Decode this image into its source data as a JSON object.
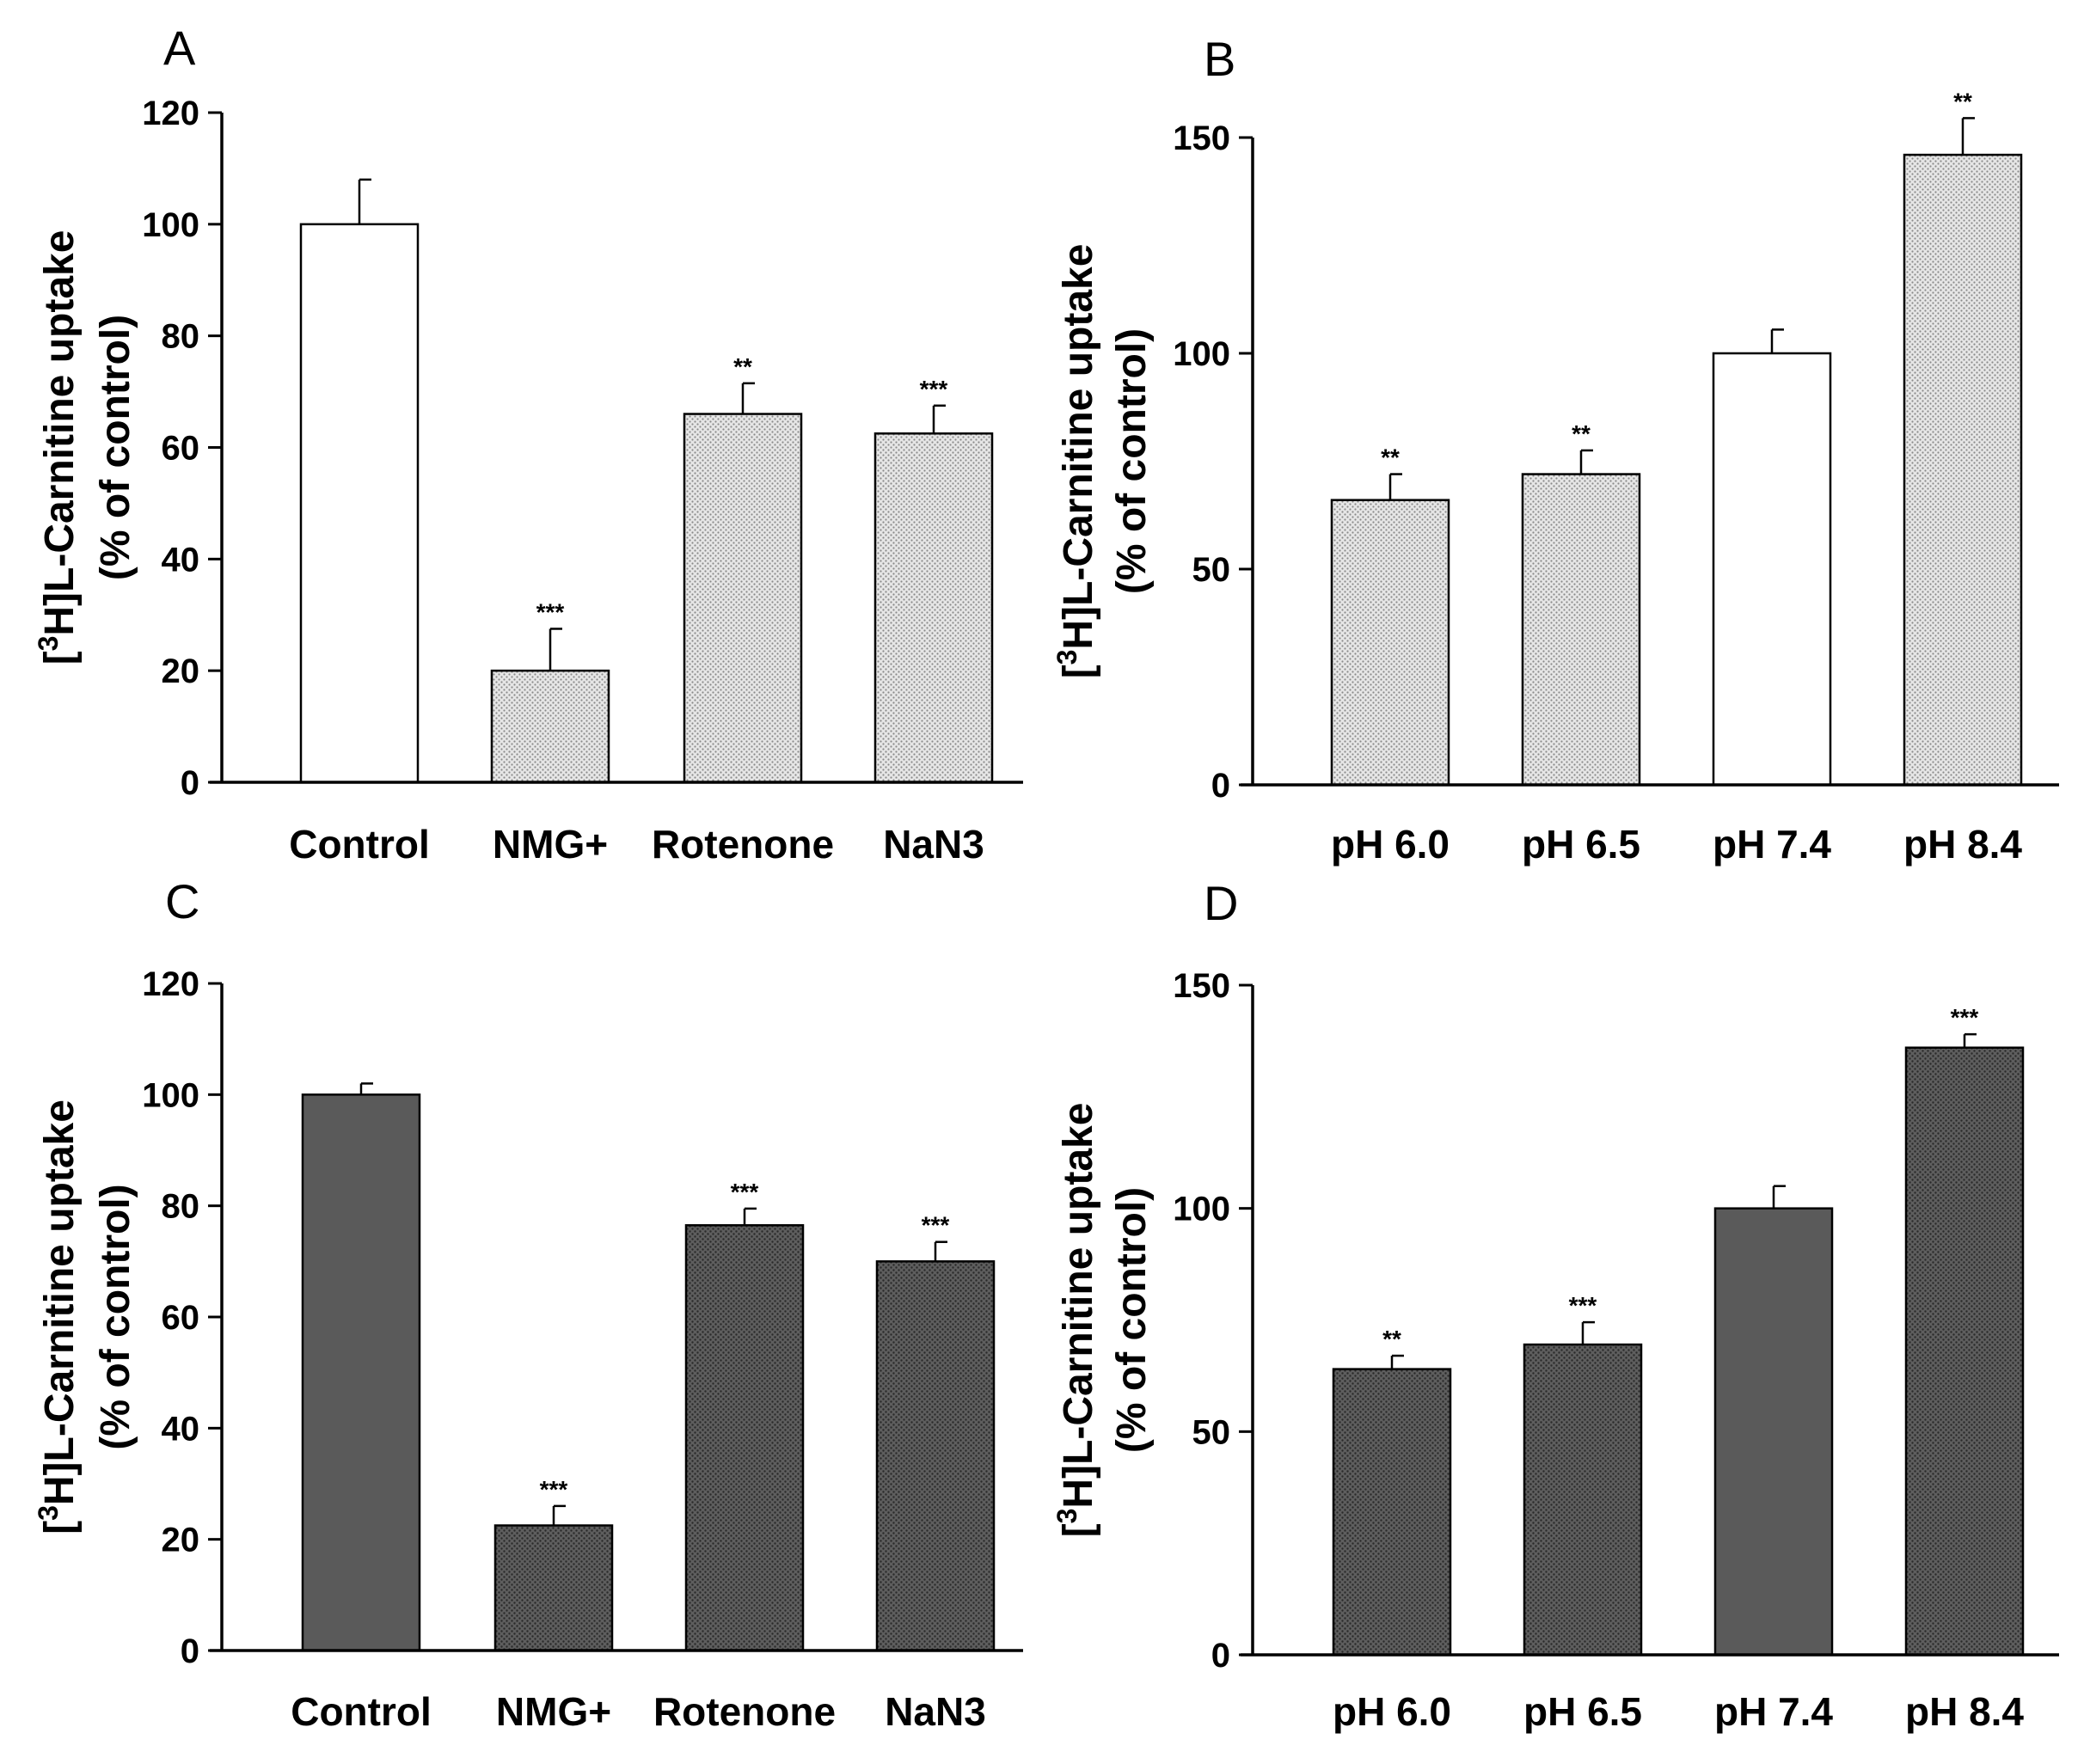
{
  "figure": {
    "panels": [
      "A",
      "B",
      "C",
      "D"
    ]
  },
  "chart_data": [
    {
      "panel": "A",
      "type": "bar",
      "categories": [
        "Control",
        "NMG+",
        "Rotenone",
        "NaN3"
      ],
      "values": [
        100,
        20,
        66,
        62.5
      ],
      "errors": [
        8,
        7.5,
        5.5,
        5
      ],
      "significance": [
        "",
        "***",
        "**",
        "***"
      ],
      "bar_fills": [
        "white",
        "light-stipple",
        "light-stipple",
        "light-stipple"
      ],
      "ylabel_line1": "[3H]L-Carnitine uptake",
      "ylabel_line2": "(% of control)",
      "ylim": [
        0,
        120
      ],
      "yticks": [
        0,
        20,
        40,
        60,
        80,
        100,
        120
      ],
      "xlabel": ""
    },
    {
      "panel": "B",
      "type": "bar",
      "categories": [
        "pH 6.0",
        "pH 6.5",
        "pH 7.4",
        "pH 8.4"
      ],
      "values": [
        66,
        72,
        100,
        146
      ],
      "errors": [
        6,
        5.5,
        5.5,
        8.5
      ],
      "significance": [
        "**",
        "**",
        "",
        "**"
      ],
      "bar_fills": [
        "light-stipple",
        "light-stipple",
        "white",
        "light-stipple"
      ],
      "ylabel_line1": "[3H]L-Carnitine uptake",
      "ylabel_line2": "(% of control)",
      "ylim": [
        0,
        150
      ],
      "yticks": [
        0,
        50,
        100,
        150
      ],
      "xlabel": ""
    },
    {
      "panel": "C",
      "type": "bar",
      "categories": [
        "Control",
        "NMG+",
        "Rotenone",
        "NaN3"
      ],
      "values": [
        100,
        22.5,
        76.5,
        70
      ],
      "errors": [
        2,
        3.5,
        3,
        3.5
      ],
      "significance": [
        "",
        "***",
        "***",
        "***"
      ],
      "bar_fills": [
        "dark-solid",
        "dark-stipple",
        "dark-stipple",
        "dark-stipple"
      ],
      "ylabel_line1": "[3H]L-Carnitine uptake",
      "ylabel_line2": "(% of control)",
      "ylim": [
        0,
        120
      ],
      "yticks": [
        0,
        20,
        40,
        60,
        80,
        100,
        120
      ],
      "xlabel": ""
    },
    {
      "panel": "D",
      "type": "bar",
      "categories": [
        "pH 6.0",
        "pH 6.5",
        "pH 7.4",
        "pH 8.4"
      ],
      "values": [
        64,
        69.5,
        100,
        136
      ],
      "errors": [
        3,
        5,
        5,
        3
      ],
      "significance": [
        "**",
        "***",
        "",
        "***"
      ],
      "bar_fills": [
        "dark-stipple",
        "dark-stipple",
        "dark-solid",
        "dark-stipple"
      ],
      "ylabel_line1": "[3H]L-Carnitine uptake",
      "ylabel_line2": "(% of control)",
      "ylim": [
        0,
        150
      ],
      "yticks": [
        0,
        50,
        100,
        150
      ],
      "xlabel": ""
    }
  ],
  "colors": {
    "axis": "#000000",
    "white_bar": "#ffffff",
    "light_stipple_bg": "#e6e6e6",
    "light_stipple_dot": "#8a8a8a",
    "dark_solid": "#5a5a5a",
    "dark_stipple_bg": "#5e5e5e",
    "dark_stipple_dot": "#2a2a2a"
  }
}
